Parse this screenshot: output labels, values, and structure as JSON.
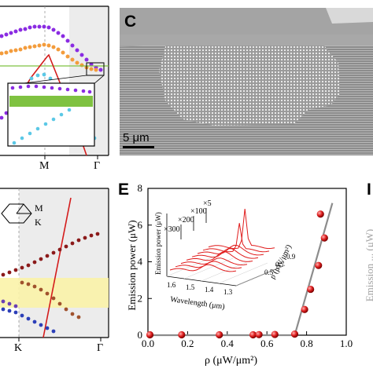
{
  "panels": {
    "top_left": {
      "x_ticks": [
        "M",
        "Γ"
      ]
    },
    "C": {
      "label": "C",
      "scalebar": "5 μm"
    },
    "bottom_left": {
      "inset_labels": [
        "M",
        "K"
      ],
      "x_ticks": [
        "K",
        "Γ"
      ]
    },
    "E": {
      "label": "E",
      "right_label_partial": "I",
      "right_axis_partial": "Emission ... (μW)"
    }
  },
  "chart_data": {
    "type": "scatter",
    "title": "",
    "xlabel": "ρ (μW/μm²)",
    "ylabel": "Emission power (μW)",
    "xlim": [
      0,
      1.0
    ],
    "ylim": [
      0,
      8
    ],
    "x_ticks": [
      "0.0",
      "0.2",
      "0.4",
      "0.6",
      "0.8",
      "1.0"
    ],
    "y_ticks": [
      "0",
      "2",
      "4",
      "6",
      "8"
    ],
    "series": [
      {
        "points": [
          {
            "x": 0.01,
            "y": 0.02
          },
          {
            "x": 0.17,
            "y": 0.02
          },
          {
            "x": 0.36,
            "y": 0.02
          },
          {
            "x": 0.53,
            "y": 0.02
          },
          {
            "x": 0.56,
            "y": 0.03
          },
          {
            "x": 0.64,
            "y": 0.04
          },
          {
            "x": 0.74,
            "y": 0.06
          },
          {
            "x": 0.79,
            "y": 1.4
          },
          {
            "x": 0.82,
            "y": 2.5
          },
          {
            "x": 0.86,
            "y": 3.8
          },
          {
            "x": 0.89,
            "y": 5.3
          },
          {
            "x": 0.87,
            "y": 6.6
          }
        ]
      }
    ],
    "fit_line": [
      [
        0,
        0
      ],
      [
        0.74,
        0
      ],
      [
        0.93,
        7.2
      ]
    ],
    "inset": {
      "xlabel": "Wavelength (μm)",
      "ylabel": "Emission power (μW)",
      "zlabel": "ρ (μW/μm²)",
      "wavelength_ticks": [
        "1.6",
        "1.5",
        "1.4",
        "1.3"
      ],
      "rho_ticks": [
        "0.9",
        "0.7",
        "0.5"
      ],
      "scale_labels": [
        "×300",
        "×200",
        "×100",
        "×5"
      ]
    }
  }
}
